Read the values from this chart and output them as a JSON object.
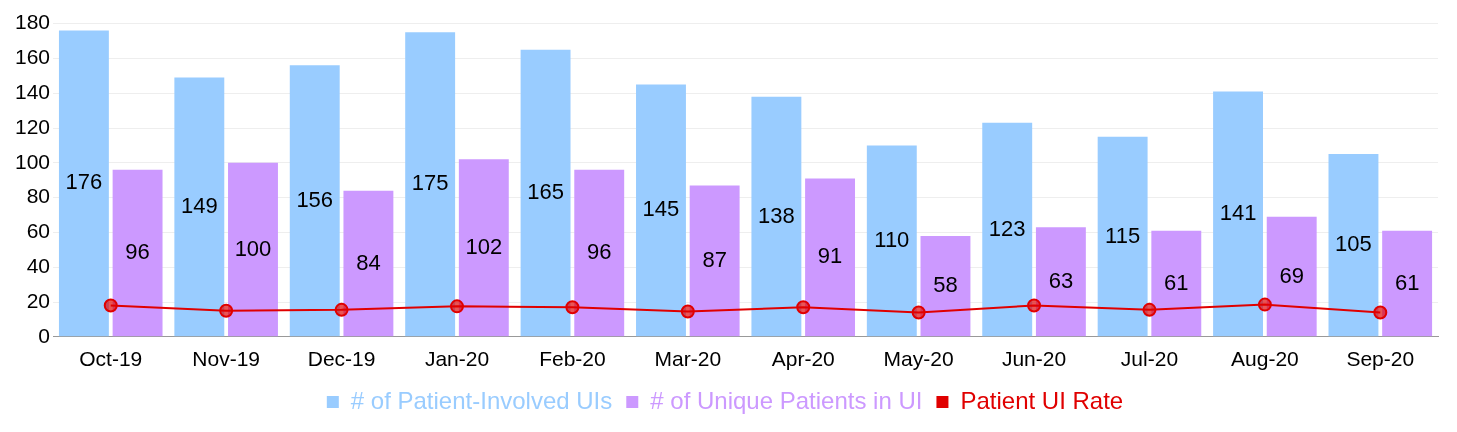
{
  "chart_data": {
    "type": "bar",
    "categories": [
      "Oct-19",
      "Nov-19",
      "Dec-19",
      "Jan-20",
      "Feb-20",
      "Mar-20",
      "Apr-20",
      "May-20",
      "Jun-20",
      "Jul-20",
      "Aug-20",
      "Sep-20"
    ],
    "series": [
      {
        "name": "# of Patient-Involved UIs",
        "color": "#99ccff",
        "values": [
          176,
          149,
          156,
          175,
          165,
          145,
          138,
          110,
          123,
          115,
          141,
          105
        ],
        "value_labels": [
          "176",
          "149",
          "156",
          "175",
          "165",
          "145",
          "138",
          "110",
          "123",
          "115",
          "141",
          "105"
        ]
      },
      {
        "name": "# of Unique Patients in UI",
        "color": "#cc99ff",
        "values": [
          96,
          100,
          84,
          102,
          96,
          87,
          91,
          58,
          63,
          61,
          69,
          61
        ],
        "value_labels": [
          "96",
          "100",
          "84",
          "102",
          "96",
          "87",
          "91",
          "58",
          "63",
          "61",
          "69",
          "61"
        ]
      },
      {
        "name": "Patient UI Rate",
        "type": "line",
        "color": "#e00000",
        "values": [
          18,
          15,
          15.5,
          17.5,
          17,
          14.5,
          17,
          14,
          18,
          15.5,
          18.5,
          14
        ],
        "marker": "circle"
      }
    ],
    "ylim": [
      0,
      180
    ],
    "yticks": [
      0,
      20,
      40,
      60,
      80,
      100,
      120,
      140,
      160,
      180
    ],
    "grid": "y",
    "legend": "bottom"
  }
}
